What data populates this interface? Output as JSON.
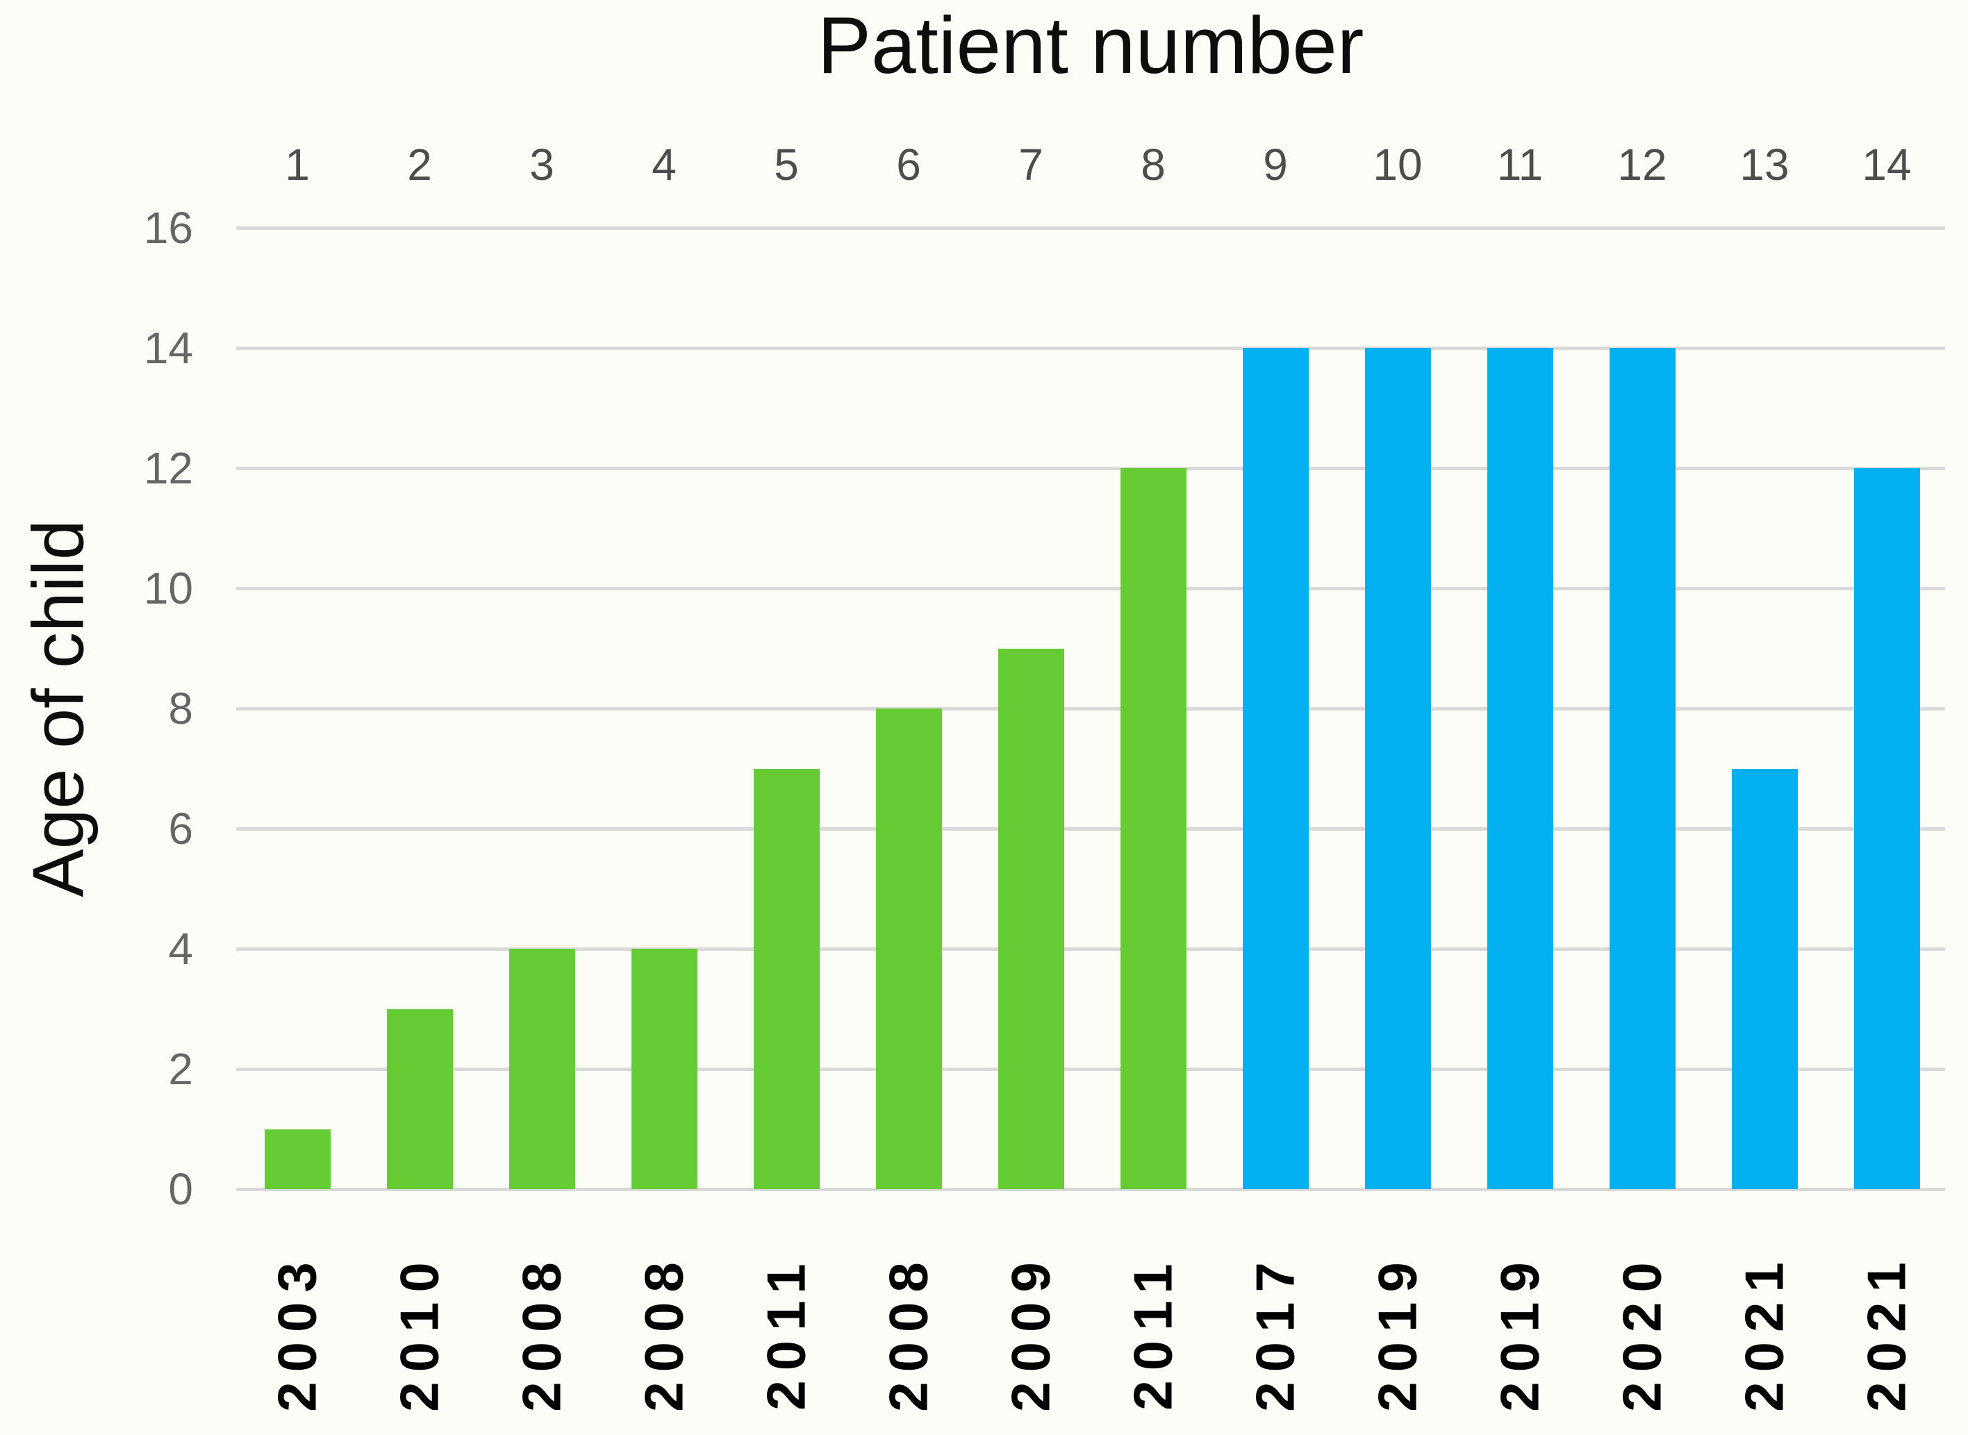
{
  "title": "Patient number",
  "ylabel": "Age of child",
  "colors": {
    "background": "#FDFDF8",
    "gridline": "#D9D9D9",
    "bar_green": "#66CC33",
    "bar_blue": "#00B0F0",
    "y_tick_text": "#666666",
    "top_axis_text": "#4D4D4D",
    "title_text": "#0D0D0D",
    "year_label_text": "#000000"
  },
  "chart_data": {
    "type": "bar",
    "title": "Patient number",
    "top_axis_title": "Patient number",
    "top_axis_values": [
      "1",
      "2",
      "3",
      "4",
      "5",
      "6",
      "7",
      "8",
      "9",
      "10",
      "11",
      "12",
      "13",
      "14"
    ],
    "categories": [
      "2003",
      "2010",
      "2008",
      "2008",
      "2011",
      "2008",
      "2009",
      "2011",
      "2017",
      "2019",
      "2019",
      "2020",
      "2021",
      "2021"
    ],
    "values": [
      1,
      3,
      4,
      4,
      7,
      8,
      9,
      12,
      14,
      14,
      14,
      14,
      7,
      12
    ],
    "bar_colors": [
      "#66CC33",
      "#66CC33",
      "#66CC33",
      "#66CC33",
      "#66CC33",
      "#66CC33",
      "#66CC33",
      "#66CC33",
      "#00B0F0",
      "#00B0F0",
      "#00B0F0",
      "#00B0F0",
      "#00B0F0",
      "#00B0F0"
    ],
    "series": [
      {
        "name": "green-bars",
        "color": "#66CC33",
        "patient_numbers": [
          1,
          2,
          3,
          4,
          5,
          6,
          7,
          8
        ]
      },
      {
        "name": "blue-bars",
        "color": "#00B0F0",
        "patient_numbers": [
          9,
          10,
          11,
          12,
          13,
          14
        ]
      }
    ],
    "xlabel": "",
    "ylabel": "Age of child",
    "ylim": [
      0,
      16
    ],
    "yticks": [
      0,
      2,
      4,
      6,
      8,
      10,
      12,
      14,
      16
    ],
    "grid": true,
    "legend": false
  }
}
